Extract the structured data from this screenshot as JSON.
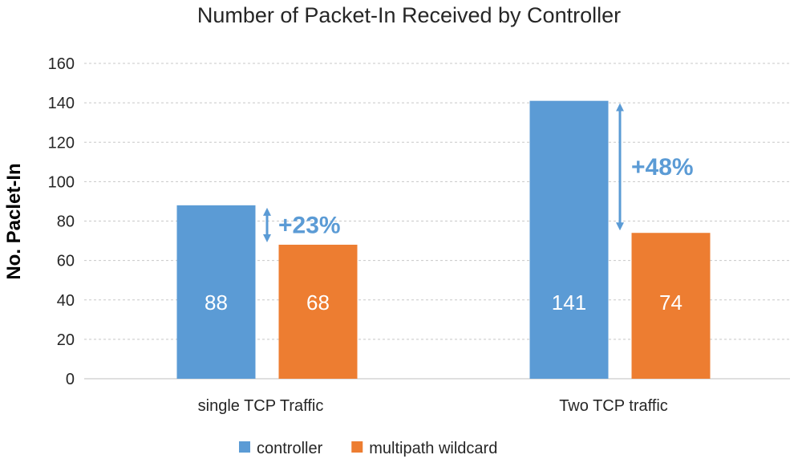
{
  "chart_data": {
    "type": "bar",
    "title": "Number of Packet-In Received by Controller",
    "xlabel": "",
    "ylabel": "No. Paclet-In",
    "ylim": [
      0,
      160
    ],
    "yticks": [
      0,
      20,
      40,
      60,
      80,
      100,
      120,
      140,
      160
    ],
    "categories": [
      "single TCP Traffic",
      "Two TCP traffic"
    ],
    "series": [
      {
        "name": "controller",
        "values": [
          88,
          141
        ],
        "color": "#5b9bd5"
      },
      {
        "name": "multipath wildcard",
        "values": [
          68,
          74
        ],
        "color": "#ed7d31"
      }
    ],
    "annotations": [
      {
        "category": "single TCP Traffic",
        "text": "+23%",
        "from": 88,
        "to": 68
      },
      {
        "category": "Two TCP traffic",
        "text": "+48%",
        "from": 141,
        "to": 74
      }
    ],
    "annotation_color": "#5b9bd5",
    "grid": true,
    "legend": "bottom"
  }
}
